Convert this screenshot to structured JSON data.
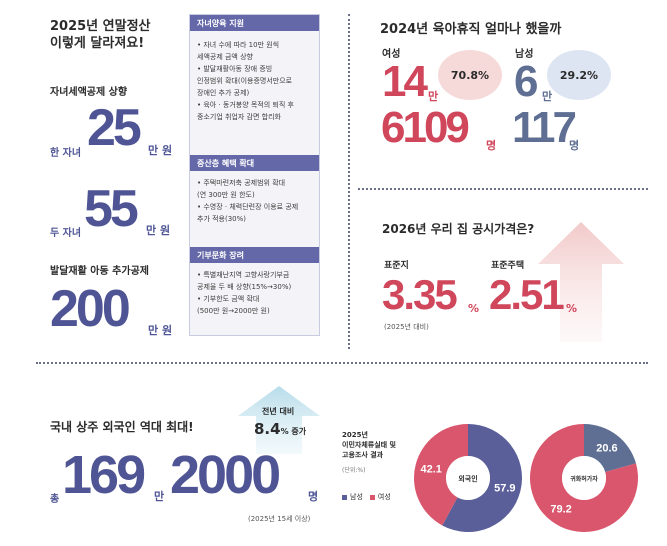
{
  "left": {
    "title_line1": "2025년 연말정산",
    "title_line2": "이렇게 달라져요!",
    "child_credit_label": "자녀세액공제 상향",
    "one_child_label": "한 자녀",
    "one_child_value": "25",
    "one_child_unit": "만 원",
    "two_child_label": "두 자녀",
    "two_child_value": "55",
    "two_child_unit": "만 원",
    "disabled_label": "발달재활 아동 추가공제",
    "disabled_value": "200",
    "disabled_unit": "만 원"
  },
  "panel": {
    "sec1_title": "자녀양육 지원",
    "sec1_items": [
      "• 자녀 수에 따라 10만 원씩",
      "  세액공제 금액 상향",
      "• 발달재활아동 장애 증빙",
      "  인정범위 확대(이용증명서만으로",
      "  장애인 추가 공제)",
      "• 육아 · 동거봉양 목적의 퇴직 후",
      "  중소기업 취업자 감면 합리화"
    ],
    "sec2_title": "중산층 혜택 확대",
    "sec2_items": [
      "• 주택마련저축 공제범위 확대",
      "  (연 300만 원 한도)",
      "• 수영장 · 체력단련장 이용료 공제",
      "  추가 적용(30%)"
    ],
    "sec3_title": "기부문화 장려",
    "sec3_items": [
      "• 특별재난지역 고향사랑기부금",
      "  공제율 두 배 상향(15%→30%)",
      "• 기부한도 금액 확대",
      "  (500만 원→2000만 원)"
    ]
  },
  "parental": {
    "title": "2024년 육아휴직 얼마나 했을까",
    "female_label": "여성",
    "female_man": "14",
    "female_man_unit": "만",
    "female_rest": "6109",
    "female_rest_unit": "명",
    "female_pct": "70.8%",
    "male_label": "남성",
    "male_man": "6",
    "male_man_unit": "만",
    "male_rest": "117",
    "male_rest_unit": "명",
    "male_pct": "29.2%"
  },
  "price": {
    "title": "2026년 우리 집 공시가격은?",
    "land_label": "표준지",
    "land_value": "3.35",
    "land_unit": "%",
    "house_label": "표준주택",
    "house_value": "2.51",
    "house_unit": "%",
    "note": "(2025년 대비)"
  },
  "foreign": {
    "title": "국내 상주 외국인 역대 최대!",
    "total_label": "총",
    "value_man": "169",
    "man_unit": "만",
    "value_rest": "2000",
    "rest_unit": "명",
    "growth_label": "전년 대비",
    "growth_value": "8.4",
    "growth_unit": "% 증가",
    "note": "(2025년 15세 이상)",
    "survey_line1": "2025년",
    "survey_line2": "이민자체류실태 및",
    "survey_line3": "고용조사 결과",
    "survey_unit": "(단위:%)",
    "legend_male": "남성",
    "legend_female": "여성",
    "colors": {
      "male": "#5a5f9a",
      "female": "#d9566d",
      "ring2_male": "#5f6f93"
    }
  },
  "chart_data": [
    {
      "type": "pie",
      "title": "외국인",
      "categories": [
        "남성",
        "여성"
      ],
      "values": [
        57.9,
        42.1
      ]
    },
    {
      "type": "pie",
      "title": "귀화허가자",
      "categories": [
        "남성",
        "여성"
      ],
      "values": [
        20.6,
        79.2
      ]
    }
  ]
}
